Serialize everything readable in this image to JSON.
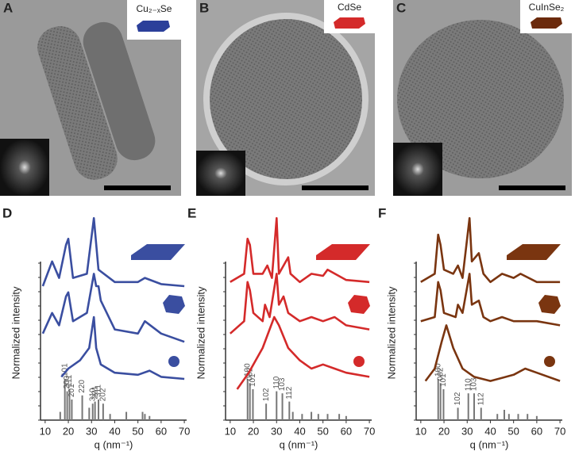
{
  "images": [
    {
      "label": "A",
      "material": "Cu₂₋ₓSe"
    },
    {
      "label": "B",
      "material": "CdSe"
    },
    {
      "label": "C",
      "material": "CuInSe₂"
    }
  ],
  "chart_data": [
    {
      "type": "line",
      "label": "D",
      "xlabel": "q (nm⁻¹)",
      "ylabel": "Normalized intensity",
      "xlim": [
        8,
        71
      ],
      "xticks": [
        10,
        20,
        30,
        40,
        50,
        60,
        70
      ],
      "ylim": [
        0,
        100
      ],
      "color": "#3a4ea0",
      "series": [
        {
          "x": [
            9,
            13,
            16,
            19,
            20,
            22,
            28,
            31,
            33,
            40,
            50,
            53,
            60,
            70
          ],
          "values": [
            65,
            77,
            69,
            85,
            88,
            69,
            71,
            98,
            73,
            67,
            67,
            69,
            66,
            65
          ]
        },
        {
          "x": [
            9,
            13,
            16,
            19,
            20,
            22,
            28,
            31,
            32,
            33,
            34,
            40,
            50,
            53,
            60,
            70
          ],
          "values": [
            42,
            52,
            46,
            60,
            62,
            48,
            52,
            71,
            65,
            65,
            58,
            44,
            42,
            48,
            42,
            38
          ]
        },
        {
          "x": [
            17,
            20,
            25,
            29,
            31,
            32,
            34,
            40,
            50,
            55,
            60,
            70
          ],
          "values": [
            21,
            25,
            29,
            35,
            50,
            35,
            27,
            23,
            22,
            24,
            21,
            20
          ]
        }
      ],
      "sticks": {
        "x": [
          16.5,
          18.5,
          19.5,
          20.5,
          21.5,
          26,
          29,
          30.5,
          31.5,
          33,
          35,
          38,
          45,
          52,
          53,
          55
        ],
        "values": [
          4,
          20,
          14,
          15,
          10,
          12,
          6,
          8,
          9,
          10,
          8,
          3,
          4,
          4,
          3,
          2
        ],
        "labels": [
          null,
          "101",
          "200",
          "111",
          "201",
          "220",
          null,
          "310",
          "221",
          "311",
          "202",
          null,
          null,
          null,
          null,
          null
        ]
      }
    },
    {
      "type": "line",
      "label": "E",
      "xlabel": "q (nm⁻¹)",
      "ylabel": "Normalized intensity",
      "xlim": [
        8,
        71
      ],
      "xticks": [
        10,
        20,
        30,
        40,
        50,
        60,
        70
      ],
      "ylim": [
        0,
        100
      ],
      "color": "#d42a2a",
      "series": [
        {
          "x": [
            10,
            16,
            17.5,
            18.5,
            20,
            24,
            26,
            28,
            30,
            31,
            35,
            36,
            40,
            45,
            50,
            52,
            60,
            70
          ],
          "values": [
            67,
            71,
            88,
            85,
            71,
            71,
            75,
            69,
            98,
            71,
            79,
            71,
            67,
            71,
            70,
            73,
            68,
            67
          ]
        },
        {
          "x": [
            10,
            16,
            17.5,
            18.5,
            20,
            24,
            25,
            27,
            30,
            31,
            33,
            35,
            40,
            45,
            50,
            55,
            60,
            70
          ],
          "values": [
            42,
            48,
            67,
            63,
            52,
            48,
            56,
            50,
            71,
            56,
            60,
            52,
            48,
            50,
            48,
            50,
            46,
            44
          ]
        },
        {
          "x": [
            13,
            18,
            24,
            29,
            31,
            35,
            40,
            45,
            50,
            55,
            60,
            70
          ],
          "values": [
            15,
            23,
            35,
            50,
            46,
            35,
            29,
            25,
            27,
            25,
            23,
            21
          ]
        }
      ],
      "sticks": {
        "x": [
          17.5,
          18.5,
          19.8,
          25.5,
          30,
          32.5,
          35.5,
          37,
          41,
          45,
          48,
          52,
          57,
          60
        ],
        "values": [
          20,
          18,
          15,
          8,
          14,
          13,
          9,
          4,
          3,
          4,
          3,
          3,
          3,
          2
        ],
        "labels": [
          "100",
          "002",
          "101",
          "102",
          "110",
          "103",
          "112",
          null,
          null,
          null,
          null,
          null,
          null,
          null
        ]
      }
    },
    {
      "type": "line",
      "label": "F",
      "xlabel": "q (nm⁻¹)",
      "ylabel": "Normalized intensity",
      "xlim": [
        8,
        71
      ],
      "xticks": [
        10,
        20,
        30,
        40,
        50,
        60,
        70
      ],
      "ylim": [
        0,
        100
      ],
      "color": "#7a3510",
      "series": [
        {
          "x": [
            10,
            16,
            17.5,
            18.5,
            20,
            24,
            26,
            28,
            31,
            32,
            35,
            37,
            40,
            45,
            50,
            53,
            60,
            70
          ],
          "values": [
            67,
            71,
            90,
            85,
            73,
            71,
            75,
            69,
            98,
            77,
            81,
            71,
            67,
            71,
            69,
            71,
            67,
            67
          ]
        },
        {
          "x": [
            10,
            16,
            17.5,
            18.5,
            20,
            25,
            26,
            28,
            31,
            32,
            35,
            37,
            40,
            45,
            50,
            60,
            70
          ],
          "values": [
            48,
            50,
            67,
            63,
            52,
            50,
            56,
            52,
            71,
            56,
            58,
            50,
            48,
            50,
            48,
            48,
            46
          ]
        },
        {
          "x": [
            12,
            16,
            19,
            21,
            24,
            28,
            33,
            40,
            50,
            55,
            60,
            70
          ],
          "values": [
            19,
            25,
            38,
            46,
            35,
            25,
            21,
            19,
            22,
            25,
            23,
            19
          ]
        }
      ],
      "sticks": {
        "x": [
          17.5,
          18.5,
          19.8,
          26,
          30.5,
          33,
          36,
          43,
          46,
          48,
          52,
          56,
          60
        ],
        "values": [
          20,
          18,
          15,
          6,
          13,
          13,
          6,
          3,
          5,
          3,
          3,
          3,
          2
        ],
        "labels": [
          "100",
          "002",
          "101",
          "102",
          "110",
          "103",
          "112",
          null,
          null,
          null,
          null,
          null,
          null
        ]
      }
    }
  ]
}
